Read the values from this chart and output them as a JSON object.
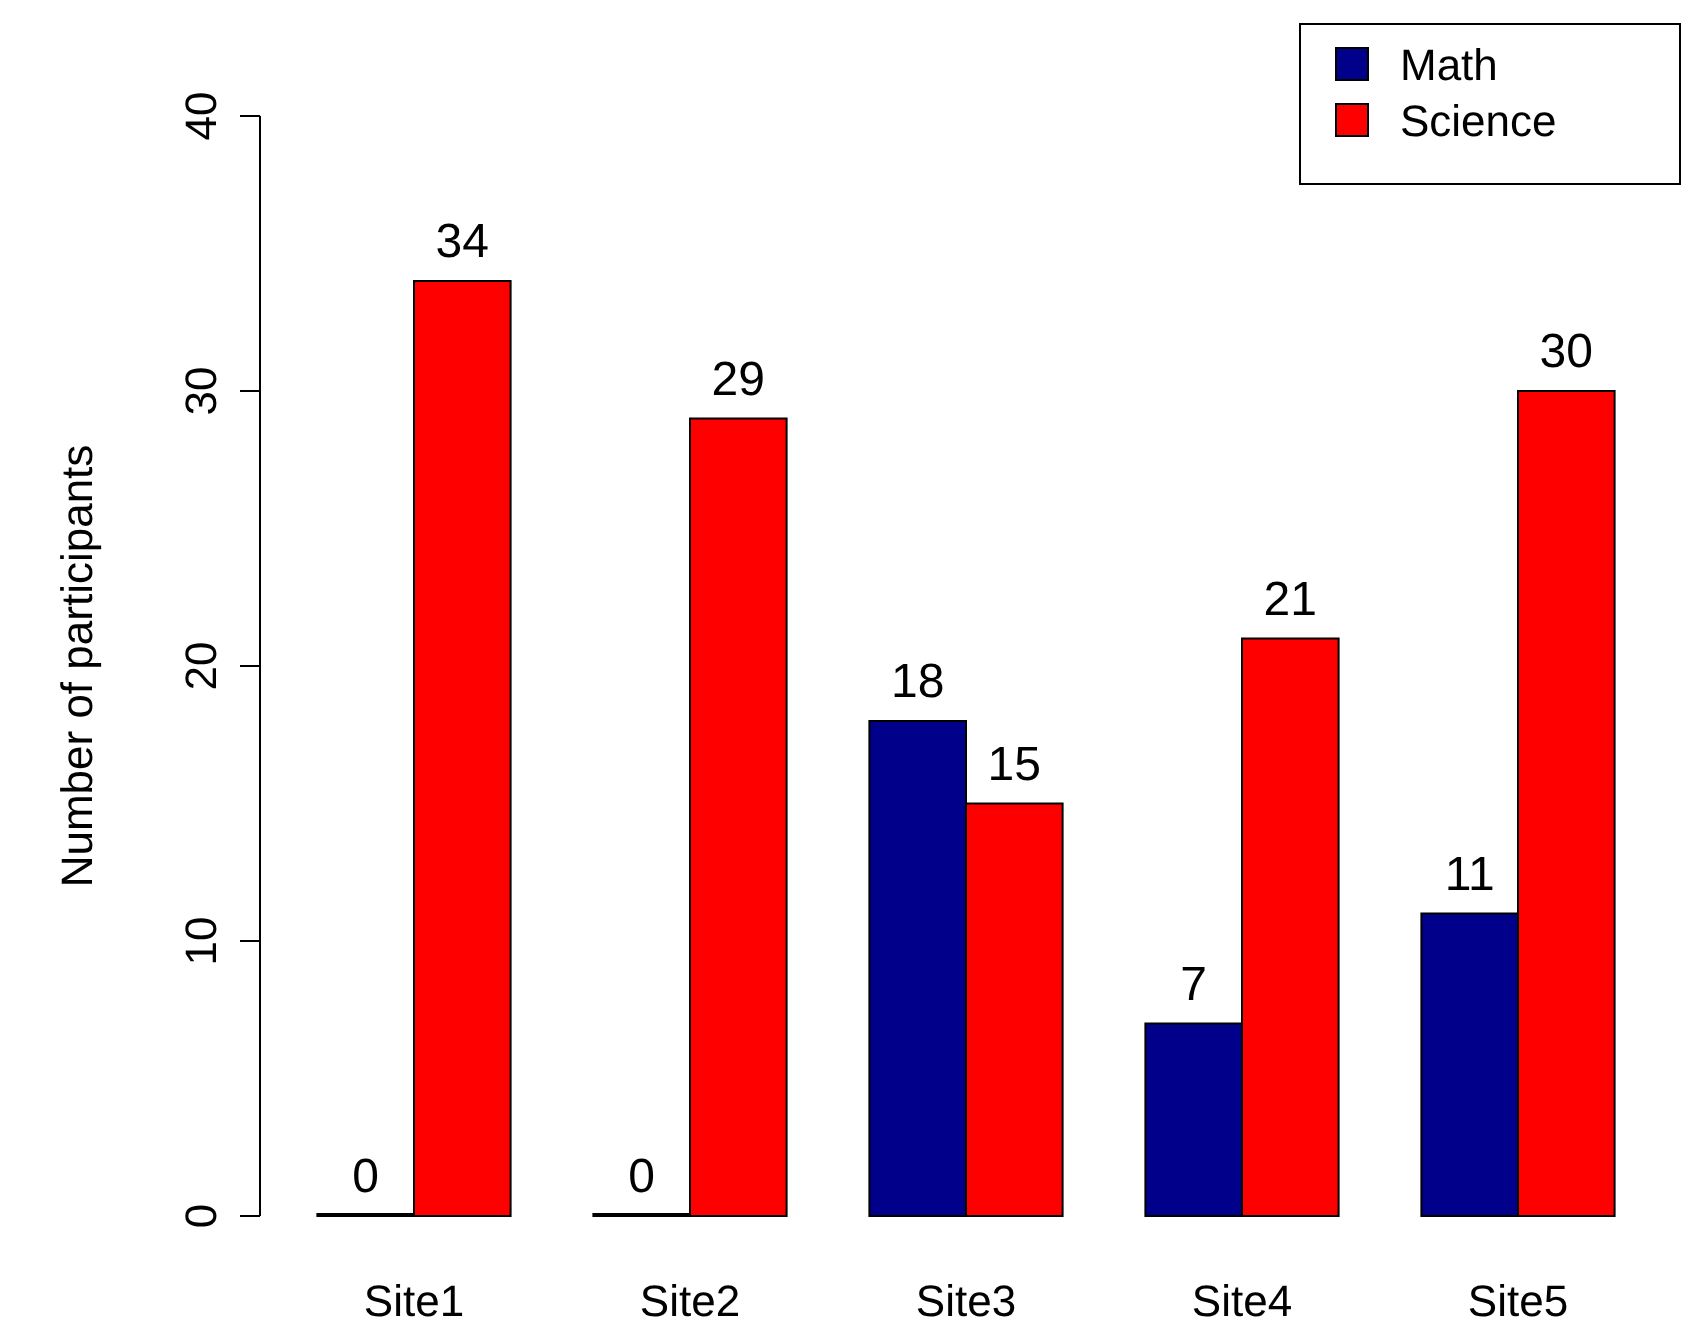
{
  "chart_data": {
    "type": "bar",
    "ylabel": "Number of participants",
    "categories": [
      "Site1",
      "Site2",
      "Site3",
      "Site4",
      "Site5"
    ],
    "series": [
      {
        "name": "Math",
        "color": "#00008b",
        "values": [
          0,
          0,
          18,
          7,
          11
        ]
      },
      {
        "name": "Science",
        "color": "#ff0000",
        "values": [
          34,
          29,
          15,
          21,
          30
        ]
      }
    ],
    "ylim": [
      0,
      40
    ],
    "yticks": [
      0,
      10,
      20,
      30,
      40
    ],
    "data_labels": true,
    "legend": "top right",
    "grid": false
  }
}
